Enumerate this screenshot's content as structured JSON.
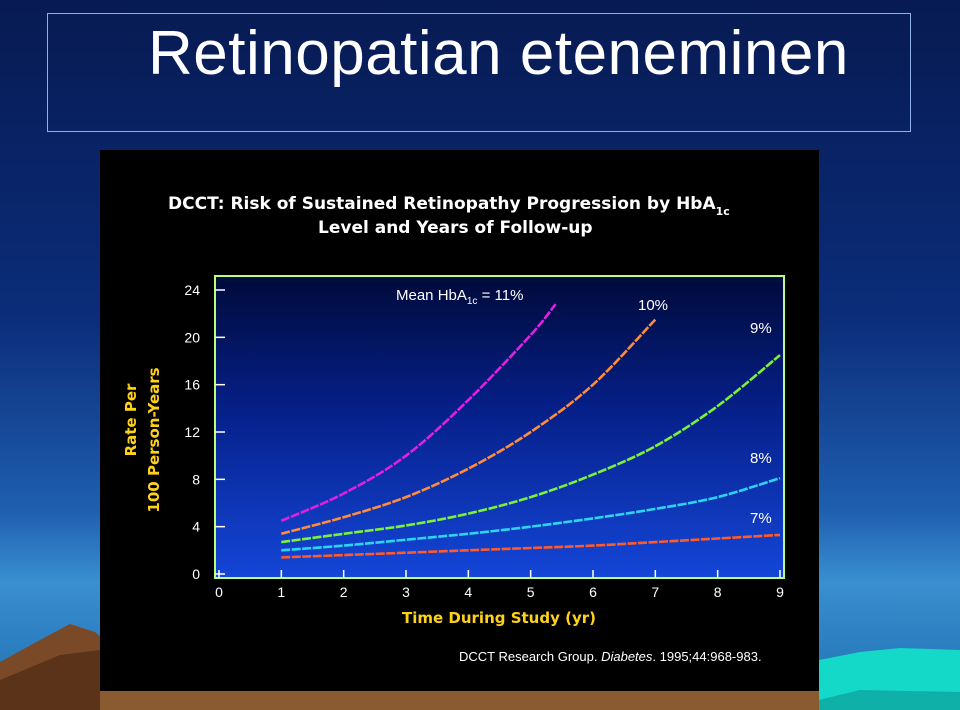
{
  "slide": {
    "title": "Retinopatian eteneminen"
  },
  "chart_data": {
    "type": "line",
    "title": "DCCT: Risk of Sustained Retinopathy Progression by HbA",
    "title_subscript": "1c",
    "title_line2": "Level and Years of Follow-up",
    "xlabel": "Time During Study (yr)",
    "ylabel_line1": "Rate Per",
    "ylabel_line2": "100 Person-Years",
    "xlim": [
      0,
      9
    ],
    "ylim": [
      0,
      24
    ],
    "x_ticks": [
      "0",
      "1",
      "2",
      "3",
      "4",
      "5",
      "6",
      "7",
      "8",
      "9"
    ],
    "y_ticks": [
      "0",
      "4",
      "8",
      "12",
      "16",
      "20",
      "24"
    ],
    "legend_prefix": "Mean HbA",
    "legend_subscript": "1c",
    "legend_suffix": " = 11%",
    "series": [
      {
        "name": "11%",
        "color": "#e020e0",
        "x": [
          1,
          2,
          3,
          4,
          5,
          5.4
        ],
        "y": [
          4.5,
          6.8,
          10.0,
          14.7,
          20.2,
          22.8
        ]
      },
      {
        "name": "10%",
        "color": "#ff8c3a",
        "x": [
          1,
          2,
          3,
          4,
          5,
          6,
          7
        ],
        "y": [
          3.4,
          4.8,
          6.5,
          8.9,
          12.0,
          16.0,
          21.5
        ]
      },
      {
        "name": "9%",
        "color": "#7cf03a",
        "x": [
          1,
          2,
          3,
          4,
          5,
          6,
          7,
          8,
          9
        ],
        "y": [
          2.7,
          3.4,
          4.1,
          5.1,
          6.5,
          8.4,
          10.8,
          14.2,
          18.5
        ]
      },
      {
        "name": "8%",
        "color": "#2cd4f0",
        "x": [
          1,
          2,
          3,
          4,
          5,
          6,
          7,
          8,
          9
        ],
        "y": [
          2.0,
          2.4,
          2.9,
          3.4,
          4.0,
          4.7,
          5.5,
          6.5,
          8.1
        ]
      },
      {
        "name": "7%",
        "color": "#ff5a2a",
        "x": [
          1,
          2,
          3,
          4,
          5,
          6,
          7,
          8,
          9
        ],
        "y": [
          1.4,
          1.6,
          1.8,
          2.0,
          2.2,
          2.4,
          2.7,
          3.0,
          3.3
        ]
      }
    ],
    "citation_prefix": "DCCT Research Group. ",
    "citation_journal": "Diabetes",
    "citation_suffix": ". 1995;44:968-983."
  }
}
